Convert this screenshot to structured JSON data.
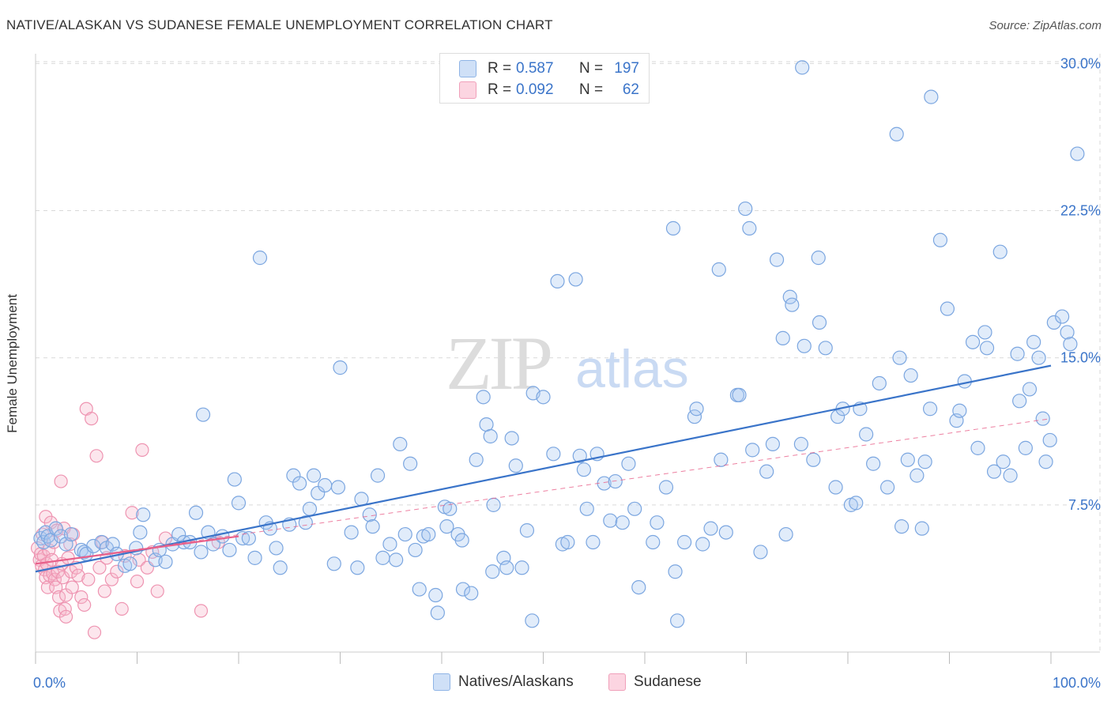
{
  "title": "NATIVE/ALASKAN VS SUDANESE FEMALE UNEMPLOYMENT CORRELATION CHART",
  "source": "Source: ZipAtlas.com",
  "watermark": {
    "zip": "ZIP",
    "atlas": "atlas"
  },
  "legend": {
    "rows": [
      {
        "r_label": "R =",
        "r_value": "0.587",
        "n_label": "N =",
        "n_value": "197",
        "color": "#aac8f0"
      },
      {
        "r_label": "R =",
        "r_value": "0.092",
        "n_label": "N =",
        "n_value": "62",
        "color": "#f5b8cb"
      }
    ]
  },
  "bottom_legend": [
    {
      "label": "Natives/Alaskans",
      "color": "#aac8f0"
    },
    {
      "label": "Sudanese",
      "color": "#f5b8cb"
    }
  ],
  "colors": {
    "blue": "#3a74c9",
    "blue_fill": "#aac8f0",
    "pink": "#e8608a",
    "pink_fill": "#f5b8cb",
    "grid": "#d9d9d9",
    "axis_text": "#3a74c9"
  },
  "chart_data": {
    "type": "scatter",
    "xlabel": "",
    "ylabel": "Female Unemployment",
    "xlim": [
      0,
      100
    ],
    "ylim": [
      0,
      30.5
    ],
    "x_tick_labels": [
      "0.0%",
      "100.0%"
    ],
    "y_tick_labels": [
      "7.5%",
      "15.0%",
      "22.5%",
      "30.0%"
    ],
    "y_ticks": [
      7.5,
      15.0,
      22.5,
      30.0
    ],
    "grid": true,
    "series": [
      {
        "name": "Natives/Alaskans",
        "trendline": {
          "x": [
            0,
            100
          ],
          "y": [
            4.1,
            14.6
          ]
        },
        "points": [
          [
            0.5,
            5.8
          ],
          [
            0.8,
            5.6
          ],
          [
            1,
            6.1
          ],
          [
            1.2,
            5.9
          ],
          [
            1.5,
            5.7
          ],
          [
            2,
            6.3
          ],
          [
            2.5,
            5.9
          ],
          [
            3,
            5.5
          ],
          [
            3.5,
            6.0
          ],
          [
            4.5,
            5.2
          ],
          [
            4.8,
            5.1
          ],
          [
            5,
            5.0
          ],
          [
            5.7,
            5.4
          ],
          [
            6.5,
            5.6
          ],
          [
            7,
            5.3
          ],
          [
            7.6,
            5.5
          ],
          [
            8,
            5.0
          ],
          [
            8.8,
            4.4
          ],
          [
            9.3,
            4.5
          ],
          [
            9.9,
            5.3
          ],
          [
            10.3,
            6.1
          ],
          [
            10.6,
            7.0
          ],
          [
            11.8,
            4.7
          ],
          [
            12.2,
            5.2
          ],
          [
            12.8,
            4.6
          ],
          [
            13.5,
            5.5
          ],
          [
            14.1,
            6.0
          ],
          [
            14.6,
            5.6
          ],
          [
            15.2,
            5.6
          ],
          [
            15.8,
            7.1
          ],
          [
            16.3,
            5.1
          ],
          [
            16.5,
            12.1
          ],
          [
            17,
            6.1
          ],
          [
            17.5,
            5.5
          ],
          [
            18.4,
            5.9
          ],
          [
            19.1,
            5.2
          ],
          [
            19.6,
            8.8
          ],
          [
            20,
            7.6
          ],
          [
            20.4,
            5.8
          ],
          [
            21,
            5.8
          ],
          [
            21.6,
            4.8
          ],
          [
            22.1,
            20.1
          ],
          [
            22.7,
            6.6
          ],
          [
            23.1,
            6.3
          ],
          [
            23.7,
            5.3
          ],
          [
            24.1,
            4.3
          ],
          [
            25,
            6.5
          ],
          [
            25.4,
            9.0
          ],
          [
            26,
            8.6
          ],
          [
            26.6,
            6.6
          ],
          [
            27,
            7.3
          ],
          [
            27.4,
            9.0
          ],
          [
            27.8,
            8.1
          ],
          [
            28.5,
            8.5
          ],
          [
            29.4,
            4.5
          ],
          [
            29.8,
            8.4
          ],
          [
            30,
            14.5
          ],
          [
            31.1,
            6.1
          ],
          [
            31.7,
            4.3
          ],
          [
            32.1,
            7.8
          ],
          [
            32.9,
            7.0
          ],
          [
            33.2,
            6.4
          ],
          [
            33.7,
            9.0
          ],
          [
            34.2,
            4.8
          ],
          [
            34.9,
            5.5
          ],
          [
            35.5,
            4.7
          ],
          [
            35.9,
            10.6
          ],
          [
            36.4,
            6.0
          ],
          [
            36.9,
            9.6
          ],
          [
            37.4,
            5.2
          ],
          [
            37.8,
            3.2
          ],
          [
            38.2,
            5.9
          ],
          [
            38.7,
            6.0
          ],
          [
            39.4,
            2.9
          ],
          [
            39.6,
            2.0
          ],
          [
            40.3,
            7.4
          ],
          [
            40.5,
            6.4
          ],
          [
            40.8,
            7.3
          ],
          [
            41.6,
            6.0
          ],
          [
            42,
            5.7
          ],
          [
            42.1,
            3.2
          ],
          [
            42.9,
            3.0
          ],
          [
            43.4,
            9.8
          ],
          [
            44.1,
            13.0
          ],
          [
            44.4,
            11.6
          ],
          [
            44.8,
            11.0
          ],
          [
            45,
            4.1
          ],
          [
            45.1,
            7.5
          ],
          [
            46.1,
            4.8
          ],
          [
            46.4,
            4.3
          ],
          [
            46.9,
            10.9
          ],
          [
            47.3,
            9.5
          ],
          [
            47.9,
            4.3
          ],
          [
            48.4,
            6.2
          ],
          [
            48.9,
            1.6
          ],
          [
            49,
            13.2
          ],
          [
            50,
            13.0
          ],
          [
            51,
            10.1
          ],
          [
            51.4,
            18.9
          ],
          [
            51.9,
            5.5
          ],
          [
            52.4,
            5.6
          ],
          [
            53.2,
            19.0
          ],
          [
            53.6,
            10.0
          ],
          [
            54,
            9.3
          ],
          [
            54.3,
            7.3
          ],
          [
            54.9,
            5.6
          ],
          [
            55.3,
            10.1
          ],
          [
            56,
            8.6
          ],
          [
            56.6,
            6.7
          ],
          [
            57.1,
            8.7
          ],
          [
            57.8,
            6.6
          ],
          [
            58.4,
            9.6
          ],
          [
            59,
            7.3
          ],
          [
            59.4,
            3.3
          ],
          [
            60.8,
            5.6
          ],
          [
            61.2,
            6.6
          ],
          [
            62.1,
            8.4
          ],
          [
            62.8,
            21.6
          ],
          [
            63,
            4.1
          ],
          [
            63.2,
            1.6
          ],
          [
            63.9,
            5.6
          ],
          [
            64.9,
            12.0
          ],
          [
            65.1,
            12.4
          ],
          [
            65.7,
            5.5
          ],
          [
            66.5,
            6.3
          ],
          [
            67.3,
            19.5
          ],
          [
            67.5,
            9.8
          ],
          [
            68,
            6.1
          ],
          [
            69.1,
            13.1
          ],
          [
            69.3,
            13.1
          ],
          [
            69.9,
            22.6
          ],
          [
            70.3,
            21.6
          ],
          [
            70.6,
            10.3
          ],
          [
            71.4,
            5.1
          ],
          [
            72,
            9.2
          ],
          [
            72.6,
            10.6
          ],
          [
            73,
            20.0
          ],
          [
            73.6,
            16.0
          ],
          [
            73.9,
            6.0
          ],
          [
            74.3,
            18.1
          ],
          [
            74.5,
            17.7
          ],
          [
            75.4,
            10.6
          ],
          [
            75.7,
            15.6
          ],
          [
            76.6,
            9.8
          ],
          [
            77.1,
            20.1
          ],
          [
            77.2,
            16.8
          ],
          [
            77.8,
            15.5
          ],
          [
            78.8,
            8.4
          ],
          [
            79,
            12.0
          ],
          [
            79.5,
            12.4
          ],
          [
            80.3,
            7.5
          ],
          [
            80.8,
            7.6
          ],
          [
            81.2,
            12.4
          ],
          [
            81.8,
            11.1
          ],
          [
            82.5,
            9.6
          ],
          [
            83.1,
            13.7
          ],
          [
            83.9,
            8.4
          ],
          [
            84.8,
            26.4
          ],
          [
            85.1,
            15.0
          ],
          [
            85.3,
            6.4
          ],
          [
            85.9,
            9.8
          ],
          [
            86.2,
            14.1
          ],
          [
            86.8,
            9.0
          ],
          [
            87.3,
            6.3
          ],
          [
            87.6,
            9.7
          ],
          [
            88.1,
            12.4
          ],
          [
            88.2,
            28.3
          ],
          [
            89.1,
            21.0
          ],
          [
            89.8,
            17.5
          ],
          [
            90.7,
            11.8
          ],
          [
            91,
            12.3
          ],
          [
            91.5,
            13.8
          ],
          [
            92.3,
            15.8
          ],
          [
            92.8,
            10.4
          ],
          [
            93.5,
            16.3
          ],
          [
            93.7,
            15.5
          ],
          [
            94.4,
            9.2
          ],
          [
            95,
            20.4
          ],
          [
            95.3,
            9.7
          ],
          [
            96,
            9.0
          ],
          [
            96.7,
            15.2
          ],
          [
            96.9,
            12.8
          ],
          [
            97.5,
            10.4
          ],
          [
            97.9,
            13.4
          ],
          [
            98.3,
            15.8
          ],
          [
            98.8,
            15.0
          ],
          [
            99.2,
            11.9
          ],
          [
            99.5,
            9.7
          ],
          [
            99.9,
            10.8
          ],
          [
            100.3,
            16.8
          ],
          [
            101.1,
            17.1
          ],
          [
            101.6,
            16.3
          ],
          [
            101.9,
            15.7
          ],
          [
            102.6,
            25.4
          ],
          [
            75.5,
            29.8
          ]
        ]
      },
      {
        "name": "Sudanese",
        "trendline_solid": {
          "x": [
            0,
            20
          ],
          "y": [
            4.5,
            5.9
          ]
        },
        "trendline_dashed": {
          "x": [
            0,
            100
          ],
          "y": [
            4.5,
            11.9
          ]
        },
        "points": [
          [
            0.2,
            5.3
          ],
          [
            0.4,
            4.7
          ],
          [
            0.5,
            5.0
          ],
          [
            0.6,
            4.4
          ],
          [
            0.7,
            6.0
          ],
          [
            0.8,
            4.9
          ],
          [
            0.9,
            4.2
          ],
          [
            1,
            3.8
          ],
          [
            1,
            6.9
          ],
          [
            1.1,
            4.5
          ],
          [
            1.2,
            3.3
          ],
          [
            1.3,
            5.2
          ],
          [
            1.4,
            3.9
          ],
          [
            1.5,
            6.6
          ],
          [
            1.6,
            4.7
          ],
          [
            1.7,
            4.0
          ],
          [
            1.8,
            5.6
          ],
          [
            1.9,
            3.7
          ],
          [
            2,
            3.3
          ],
          [
            2.1,
            6.2
          ],
          [
            2.2,
            4.1
          ],
          [
            2.3,
            2.8
          ],
          [
            2.4,
            2.1
          ],
          [
            2.5,
            8.7
          ],
          [
            2.6,
            4.5
          ],
          [
            2.7,
            3.8
          ],
          [
            2.8,
            6.3
          ],
          [
            2.9,
            2.2
          ],
          [
            3,
            1.8
          ],
          [
            3,
            2.9
          ],
          [
            3.2,
            4.8
          ],
          [
            3.4,
            5.5
          ],
          [
            3.5,
            4.1
          ],
          [
            3.6,
            3.3
          ],
          [
            3.7,
            6.0
          ],
          [
            4,
            4.3
          ],
          [
            4.2,
            3.9
          ],
          [
            4.5,
            2.8
          ],
          [
            4.8,
            2.4
          ],
          [
            5,
            12.4
          ],
          [
            5.2,
            3.7
          ],
          [
            5.5,
            11.9
          ],
          [
            5.8,
            1.0
          ],
          [
            6,
            10.0
          ],
          [
            6.3,
            4.3
          ],
          [
            6.6,
            5.6
          ],
          [
            6.8,
            3.1
          ],
          [
            7,
            4.8
          ],
          [
            7.5,
            3.7
          ],
          [
            8,
            4.1
          ],
          [
            8.5,
            2.2
          ],
          [
            8.8,
            4.9
          ],
          [
            9.5,
            7.1
          ],
          [
            10,
            3.6
          ],
          [
            10.2,
            4.7
          ],
          [
            10.5,
            10.3
          ],
          [
            11,
            4.3
          ],
          [
            11.5,
            5.1
          ],
          [
            12,
            3.1
          ],
          [
            12.8,
            5.8
          ],
          [
            16.3,
            2.1
          ],
          [
            18,
            5.6
          ]
        ]
      }
    ]
  }
}
